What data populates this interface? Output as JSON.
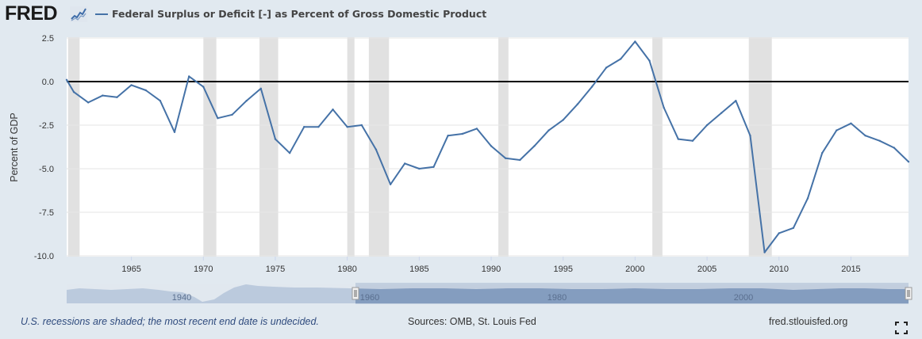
{
  "header": {
    "logo_text": "FRED",
    "logo_icon": "chart-line-icon",
    "title": "Federal Surplus or Deficit [-] as Percent of Gross Domestic Product"
  },
  "footer": {
    "note": "U.S. recessions are shaded; the most recent end date is undecided.",
    "source": "Sources: OMB, St. Louis Fed",
    "url": "fred.stlouisfed.org",
    "fullscreen_icon": "fullscreen-icon"
  },
  "colors": {
    "series": "#4572a7",
    "recession": "#e1e1e1",
    "background": "#e1e9f0",
    "plot": "#ffffff",
    "navigator_fill": "#7f98bd"
  },
  "chart_data": {
    "type": "line",
    "title": "Federal Surplus or Deficit [-] as Percent of Gross Domestic Product",
    "ylabel": "Percent of GDP",
    "xlabel": "",
    "xlim": [
      1960.5,
      2019
    ],
    "ylim": [
      -10,
      2.5
    ],
    "yticks": [
      2.5,
      0.0,
      -2.5,
      -5.0,
      -7.5,
      -10.0
    ],
    "ytick_labels": [
      "2.5",
      "0.0",
      "-2.5",
      "-5.0",
      "-7.5",
      "-10.0"
    ],
    "xticks": [
      1965,
      1970,
      1975,
      1980,
      1985,
      1990,
      1995,
      2000,
      2005,
      2010,
      2015
    ],
    "xtick_labels": [
      "1965",
      "1970",
      "1975",
      "1980",
      "1985",
      "1990",
      "1995",
      "2000",
      "2005",
      "2010",
      "2015"
    ],
    "grid": true,
    "zero_line": true,
    "recessions": [
      [
        1960.6,
        1961.4
      ],
      [
        1970.0,
        1970.9
      ],
      [
        1973.9,
        1975.2
      ],
      [
        1980.0,
        1980.5
      ],
      [
        1981.5,
        1982.9
      ],
      [
        1990.5,
        1991.2
      ],
      [
        2001.2,
        2001.9
      ],
      [
        2007.9,
        2009.5
      ]
    ],
    "series": [
      {
        "name": "Federal Surplus or Deficit [-] as Percent of Gross Domestic Product",
        "x": [
          1960,
          1961,
          1962,
          1963,
          1964,
          1965,
          1966,
          1967,
          1968,
          1969,
          1970,
          1971,
          1972,
          1973,
          1974,
          1975,
          1976,
          1977,
          1978,
          1979,
          1980,
          1981,
          1982,
          1983,
          1984,
          1985,
          1986,
          1987,
          1988,
          1989,
          1990,
          1991,
          1992,
          1993,
          1994,
          1995,
          1996,
          1997,
          1998,
          1999,
          2000,
          2001,
          2002,
          2003,
          2004,
          2005,
          2006,
          2007,
          2008,
          2009,
          2010,
          2011,
          2012,
          2013,
          2014,
          2015,
          2016,
          2017,
          2018,
          2019
        ],
        "values": [
          0.1,
          -0.6,
          -1.2,
          -0.8,
          -0.9,
          -0.2,
          -0.5,
          -1.1,
          -2.9,
          0.3,
          -0.3,
          -2.1,
          -1.9,
          -1.1,
          -0.4,
          -3.3,
          -4.1,
          -2.6,
          -2.6,
          -1.6,
          -2.6,
          -2.5,
          -3.9,
          -5.9,
          -4.7,
          -5.0,
          -4.9,
          -3.1,
          -3.0,
          -2.7,
          -3.7,
          -4.4,
          -4.5,
          -3.7,
          -2.8,
          -2.2,
          -1.3,
          -0.3,
          0.8,
          1.3,
          2.3,
          1.2,
          -1.5,
          -3.3,
          -3.4,
          -2.5,
          -1.8,
          -1.1,
          -3.1,
          -9.8,
          -8.7,
          -8.4,
          -6.7,
          -4.1,
          -2.8,
          -2.4,
          -3.1,
          -3.4,
          -3.8,
          -4.6
        ]
      }
    ],
    "navigator_labels": [
      "1940",
      "1960",
      "1980",
      "2000"
    ]
  }
}
